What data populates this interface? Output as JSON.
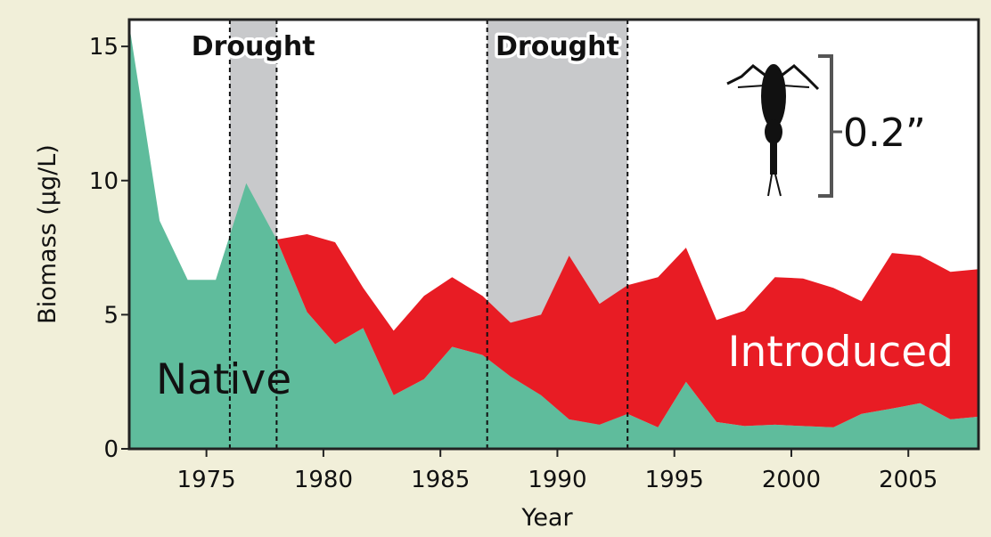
{
  "chart_data": {
    "type": "area",
    "stacked": true,
    "xlabel": "Year",
    "ylabel": "Biomass (µg/L)",
    "xlim": [
      1971.7,
      2008
    ],
    "ylim": [
      0,
      16
    ],
    "xticks": [
      1975,
      1980,
      1985,
      1990,
      1995,
      2000,
      2005
    ],
    "yticks": [
      0,
      5,
      10,
      15
    ],
    "x": [
      1971.7,
      1973,
      1974.2,
      1975.4,
      1976.7,
      1978,
      1979.3,
      1980.5,
      1981.7,
      1983,
      1984.3,
      1985.5,
      1986.8,
      1988,
      1989.3,
      1990.5,
      1991.8,
      1993,
      1994.3,
      1995.5,
      1996.8,
      1998,
      1999.3,
      2000.5,
      2001.8,
      2003,
      2004.3,
      2005.5,
      2006.8,
      2008
    ],
    "series": [
      {
        "name": "Native",
        "color": "#5fbc9c",
        "values": [
          15.8,
          8.5,
          6.3,
          6.3,
          9.9,
          7.8,
          5.1,
          3.9,
          4.5,
          2.0,
          2.6,
          3.8,
          3.5,
          2.7,
          2.0,
          1.1,
          0.9,
          1.3,
          0.8,
          2.5,
          1.0,
          0.85,
          0.9,
          0.85,
          0.8,
          1.3,
          1.5,
          1.7,
          1.1,
          1.2
        ]
      },
      {
        "name": "Introduced",
        "color": "#e81c24",
        "values": [
          0,
          0,
          0,
          0,
          0,
          0,
          2.9,
          3.8,
          1.5,
          2.4,
          3.1,
          2.6,
          2.2,
          2.0,
          3.0,
          6.1,
          4.5,
          4.8,
          5.6,
          5.0,
          3.8,
          4.3,
          5.5,
          5.5,
          5.2,
          4.2,
          5.8,
          5.5,
          5.5,
          5.5
        ]
      }
    ],
    "drought_periods": [
      {
        "label": "Drought",
        "start": 1976,
        "end": 1978
      },
      {
        "label": "Drought",
        "start": 1987,
        "end": 1993
      }
    ],
    "series_labels": [
      "Native",
      "Introduced"
    ],
    "scale_bar_label": "0.2”"
  }
}
